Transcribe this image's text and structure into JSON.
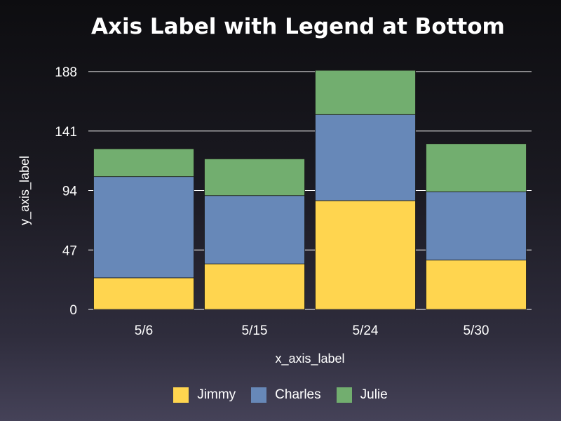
{
  "chart_data": {
    "type": "bar",
    "stacked": true,
    "title": "Axis Label with Legend at Bottom",
    "xlabel": "x_axis_label",
    "ylabel": "y_axis_label",
    "categories": [
      "5/6",
      "5/15",
      "5/24",
      "5/30"
    ],
    "series": [
      {
        "name": "Jimmy",
        "color": "#ffd54f",
        "values": [
          25,
          36,
          86,
          39
        ]
      },
      {
        "name": "Charles",
        "color": "#6788b8",
        "values": [
          80,
          54,
          68,
          54
        ]
      },
      {
        "name": "Julie",
        "color": "#72ae6f",
        "values": [
          22,
          29,
          35,
          38
        ]
      }
    ],
    "yticks": [
      0,
      47,
      94,
      141,
      188
    ],
    "ylim": [
      0,
      188
    ],
    "grid": true,
    "legend_position": "bottom"
  }
}
